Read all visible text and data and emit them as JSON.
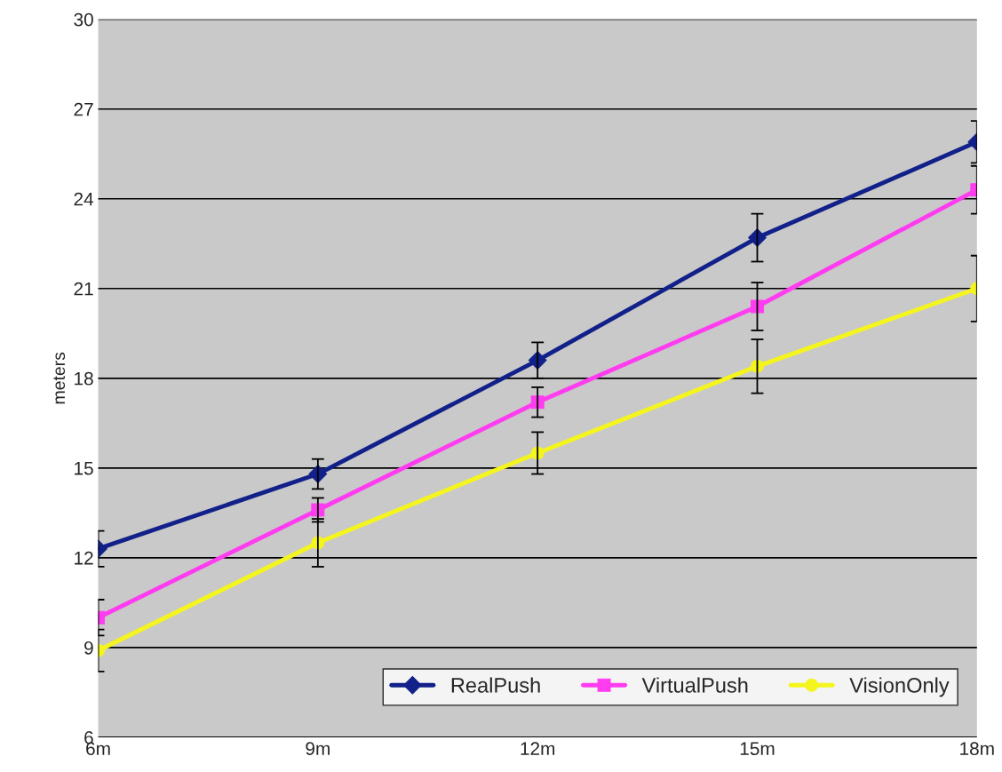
{
  "chart_data": {
    "type": "line",
    "ylabel": "meters",
    "categories": [
      "6m",
      "9m",
      "12m",
      "15m",
      "18m"
    ],
    "series": [
      {
        "name": "RealPush",
        "color": "#12218a",
        "marker": "diamond",
        "values": [
          12.3,
          14.8,
          18.6,
          22.7,
          25.9
        ],
        "errors": [
          0.6,
          0.5,
          0.6,
          0.8,
          0.7
        ]
      },
      {
        "name": "VirtualPush",
        "color": "#ff3cf0",
        "marker": "square",
        "values": [
          10.0,
          13.6,
          17.2,
          20.4,
          24.3
        ],
        "errors": [
          0.6,
          0.4,
          0.5,
          0.8,
          0.8
        ]
      },
      {
        "name": "VisionOnly",
        "color": "#f5f51e",
        "marker": "circle",
        "values": [
          8.9,
          12.5,
          15.5,
          18.4,
          21.0
        ],
        "errors": [
          0.7,
          0.8,
          0.7,
          0.9,
          1.1
        ]
      }
    ],
    "ylim": [
      6,
      30
    ],
    "yticks": [
      6,
      9,
      12,
      15,
      18,
      21,
      24,
      27,
      30
    ],
    "grid": "y",
    "legend": "bottom right"
  }
}
